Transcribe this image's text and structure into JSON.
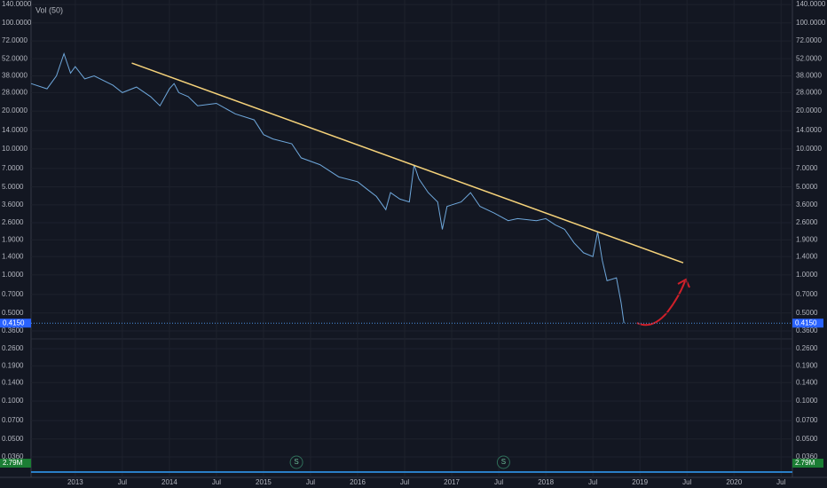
{
  "chart_data": {
    "type": "line",
    "indicator_label": "Vol (50)",
    "log_scale": true,
    "grid": true,
    "xlim": [
      2012.53,
      2020.62
    ],
    "ylim": [
      0.0248,
      152
    ],
    "xticks": [
      {
        "value": 2013,
        "label": "2013"
      },
      {
        "value": 2013.5,
        "label": "Jul"
      },
      {
        "value": 2014,
        "label": "2014"
      },
      {
        "value": 2014.5,
        "label": "Jul"
      },
      {
        "value": 2015,
        "label": "2015"
      },
      {
        "value": 2015.5,
        "label": "Jul"
      },
      {
        "value": 2016,
        "label": "2016"
      },
      {
        "value": 2016.5,
        "label": "Jul"
      },
      {
        "value": 2017,
        "label": "2017"
      },
      {
        "value": 2017.5,
        "label": "Jul"
      },
      {
        "value": 2018,
        "label": "2018"
      },
      {
        "value": 2018.5,
        "label": "Jul"
      },
      {
        "value": 2019,
        "label": "2019"
      },
      {
        "value": 2019.5,
        "label": "Jul"
      },
      {
        "value": 2020,
        "label": "2020"
      },
      {
        "value": 2020.5,
        "label": "Jul"
      }
    ],
    "yticks": [
      {
        "value": 140,
        "label": "140.0000"
      },
      {
        "value": 100,
        "label": "100.0000"
      },
      {
        "value": 72,
        "label": "72.0000"
      },
      {
        "value": 52,
        "label": "52.0000"
      },
      {
        "value": 38,
        "label": "38.0000"
      },
      {
        "value": 28,
        "label": "28.0000"
      },
      {
        "value": 20,
        "label": "20.0000"
      },
      {
        "value": 14,
        "label": "14.0000"
      },
      {
        "value": 10,
        "label": "10.0000"
      },
      {
        "value": 7,
        "label": "7.0000"
      },
      {
        "value": 5,
        "label": "5.0000"
      },
      {
        "value": 3.6,
        "label": "3.6000"
      },
      {
        "value": 2.6,
        "label": "2.6000"
      },
      {
        "value": 1.9,
        "label": "1.9000"
      },
      {
        "value": 1.4,
        "label": "1.4000"
      },
      {
        "value": 1,
        "label": "1.0000"
      },
      {
        "value": 0.7,
        "label": "0.7000"
      },
      {
        "value": 0.5,
        "label": "0.5000"
      },
      {
        "value": 0.36,
        "label": "0.3600"
      },
      {
        "value": 0.26,
        "label": "0.2600"
      },
      {
        "value": 0.19,
        "label": "0.1900"
      },
      {
        "value": 0.14,
        "label": "0.1400"
      },
      {
        "value": 0.1,
        "label": "0.1000"
      },
      {
        "value": 0.07,
        "label": "0.0700"
      },
      {
        "value": 0.05,
        "label": "0.0500"
      },
      {
        "value": 0.036,
        "label": "0.0360"
      }
    ],
    "series": [
      {
        "color": "#6fa8dc",
        "x": [
          2012.53,
          2012.7,
          2012.8,
          2012.88,
          2012.95,
          2013.0,
          2013.1,
          2013.2,
          2013.4,
          2013.5,
          2013.65,
          2013.8,
          2013.9,
          2014.0,
          2014.05,
          2014.1,
          2014.2,
          2014.3,
          2014.5,
          2014.7,
          2014.9,
          2015.0,
          2015.1,
          2015.3,
          2015.4,
          2015.6,
          2015.8,
          2016.0,
          2016.1,
          2016.2,
          2016.3,
          2016.35,
          2016.45,
          2016.55,
          2016.6,
          2016.65,
          2016.75,
          2016.85,
          2016.9,
          2016.95,
          2017.1,
          2017.2,
          2017.3,
          2017.45,
          2017.6,
          2017.7,
          2017.9,
          2018.0,
          2018.1,
          2018.2,
          2018.3,
          2018.4,
          2018.5,
          2018.55,
          2018.6,
          2018.65,
          2018.75,
          2018.8,
          2018.83
        ],
        "values": [
          33,
          30,
          38,
          57,
          40,
          45,
          36,
          38,
          32,
          28,
          31,
          26,
          22,
          30,
          33,
          28,
          26,
          22,
          23,
          19,
          17,
          13,
          12,
          11,
          8.5,
          7.5,
          6,
          5.5,
          4.8,
          4.2,
          3.3,
          4.5,
          4,
          3.8,
          7.5,
          5.8,
          4.5,
          3.8,
          2.3,
          3.5,
          3.8,
          4.5,
          3.5,
          3.1,
          2.7,
          2.8,
          2.7,
          2.8,
          2.5,
          2.3,
          1.8,
          1.5,
          1.4,
          2.2,
          1.3,
          0.9,
          0.95,
          0.6,
          0.415
        ]
      }
    ],
    "trendline": {
      "color": "#f5d27a",
      "x": [
        2013.6,
        2019.46
      ],
      "values": [
        48,
        1.25
      ]
    },
    "last_price": {
      "value": 0.415,
      "label": "0.4150"
    },
    "volume_label": "2.79M",
    "markers": [
      {
        "x": 2015.35,
        "label": "S"
      },
      {
        "x": 2017.55,
        "label": "S"
      }
    ]
  }
}
